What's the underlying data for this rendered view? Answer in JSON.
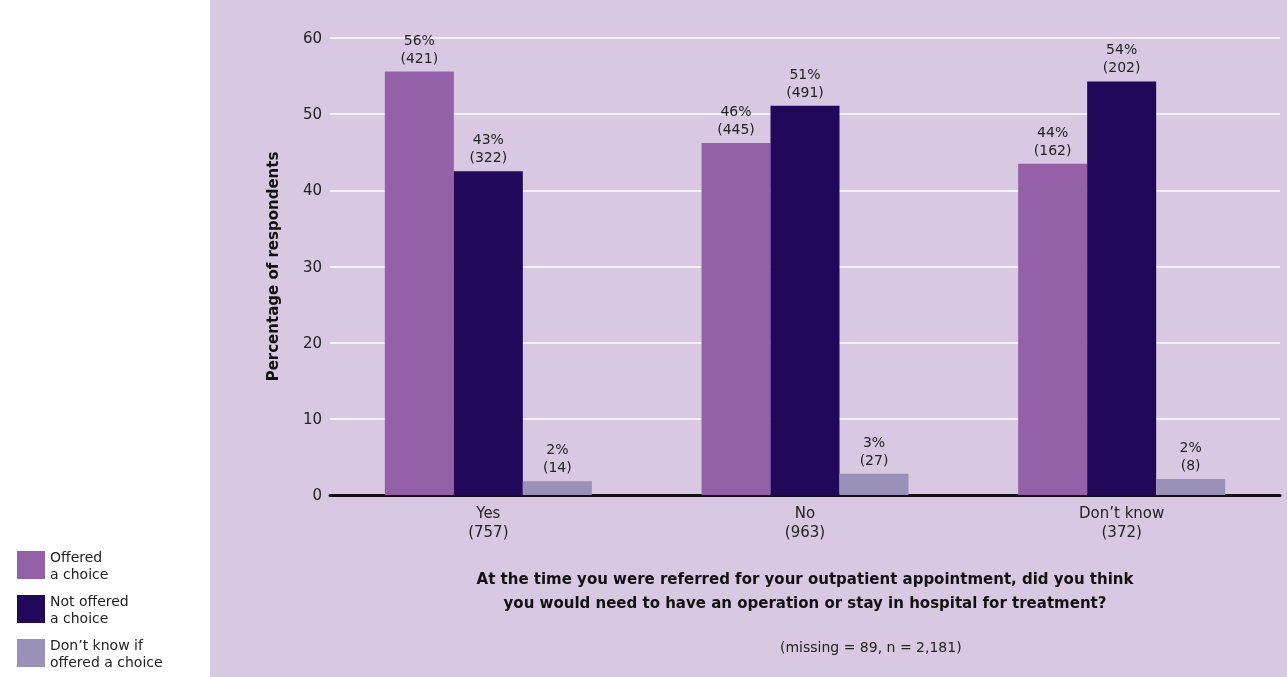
{
  "chart_data": {
    "type": "bar",
    "xlabel": "At the time you were referred for your outpatient appointment, did you think\nyou would need to have an operation or stay in hospital for treatment?",
    "ylabel": "Percentage of respondents",
    "annotations": [
      "(missing = 89, n = 2,181)"
    ],
    "categories": [
      "Yes\n(757)",
      "No\n(963)",
      "Don’t know\n(372)"
    ],
    "series": [
      {
        "name": "Offered\na choice",
        "color": "#9461a8",
        "values": [
          55.6,
          46.2,
          43.5
        ],
        "value_labels": [
          "56%\n(421)",
          "46%\n(445)",
          "44%\n(162)"
        ]
      },
      {
        "name": "Not offered\na choice",
        "color": "#22085a",
        "values": [
          42.5,
          51.1,
          54.3
        ],
        "value_labels": [
          "43%\n(322)",
          "51%\n(491)",
          "54%\n(202)"
        ]
      },
      {
        "name": "Don’t know if\noffered a choice",
        "color": "#9b90b8",
        "values": [
          1.8,
          2.8,
          2.1
        ],
        "value_labels": [
          "2%\n(14)",
          "3%\n(27)",
          "2%\n(8)"
        ]
      }
    ],
    "ylim": [
      0,
      60
    ],
    "yticks": [
      0,
      10,
      20,
      30,
      40,
      50,
      60
    ],
    "grid": "y",
    "legend": "bottom left"
  }
}
